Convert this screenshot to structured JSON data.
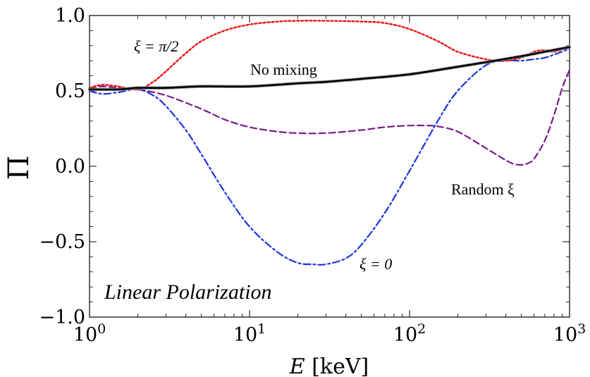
{
  "chart_data": {
    "type": "line",
    "xscale": "log",
    "xlim": [
      1,
      1000
    ],
    "ylim": [
      -1.0,
      1.0
    ],
    "x_ticks": [
      1,
      10,
      100,
      1000
    ],
    "y_ticks": [
      -1.0,
      -0.5,
      0.0,
      0.5,
      1.0
    ],
    "y_tick_labels": [
      "−1.0",
      "−0.5",
      "0.0",
      "0.5",
      "1.0"
    ],
    "xlabel_var": "E",
    "xlabel_unit": " [keV]",
    "ylabel": "Π",
    "inset_title": "Linear Polarization",
    "annotations": {
      "no_mixing": "No mixing",
      "xi_pi2": "ξ = π/2",
      "xi_0": "ξ = 0",
      "random_xi": "Random ξ"
    },
    "colors": {
      "no_mixing": "#000000",
      "xi_pi2": "#ee1111",
      "xi_0": "#1a33dd",
      "random_xi": "#7a1a8c"
    },
    "series": [
      {
        "key": "no_mixing",
        "name": "No mixing",
        "x": [
          1,
          1.5,
          2,
          3,
          5,
          10,
          20,
          30,
          50,
          100,
          200,
          300,
          500,
          700,
          1000
        ],
        "y": [
          0.51,
          0.51,
          0.52,
          0.52,
          0.53,
          0.53,
          0.55,
          0.56,
          0.58,
          0.61,
          0.66,
          0.69,
          0.73,
          0.76,
          0.79
        ]
      },
      {
        "key": "xi_pi2",
        "name": "ξ = π/2",
        "x": [
          1,
          1.2,
          1.5,
          2,
          2.5,
          3,
          4,
          5,
          7,
          10,
          15,
          20,
          30,
          50,
          70,
          100,
          150,
          200,
          300,
          400,
          500,
          600,
          700,
          800,
          1000
        ],
        "y": [
          0.52,
          0.54,
          0.53,
          0.51,
          0.56,
          0.63,
          0.75,
          0.83,
          0.9,
          0.94,
          0.96,
          0.965,
          0.965,
          0.96,
          0.95,
          0.91,
          0.83,
          0.76,
          0.71,
          0.7,
          0.72,
          0.76,
          0.77,
          0.76,
          0.79
        ]
      },
      {
        "key": "xi_0",
        "name": "ξ = 0",
        "x": [
          1,
          1.2,
          1.5,
          2,
          2.5,
          3,
          4,
          5,
          7,
          10,
          15,
          20,
          25,
          30,
          40,
          50,
          70,
          100,
          150,
          200,
          300,
          400,
          500,
          600,
          700,
          800,
          1000
        ],
        "y": [
          0.5,
          0.48,
          0.49,
          0.51,
          0.47,
          0.4,
          0.24,
          0.08,
          -0.17,
          -0.4,
          -0.57,
          -0.64,
          -0.65,
          -0.65,
          -0.61,
          -0.52,
          -0.31,
          -0.03,
          0.3,
          0.5,
          0.67,
          0.7,
          0.7,
          0.71,
          0.72,
          0.74,
          0.78
        ]
      },
      {
        "key": "random_xi",
        "name": "Random ξ",
        "x": [
          1,
          1.2,
          1.5,
          2,
          3,
          5,
          7,
          10,
          15,
          20,
          30,
          50,
          70,
          100,
          130,
          150,
          200,
          300,
          400,
          450,
          500,
          550,
          600,
          700,
          800,
          900,
          1000
        ],
        "y": [
          0.52,
          0.53,
          0.52,
          0.51,
          0.47,
          0.38,
          0.31,
          0.26,
          0.23,
          0.22,
          0.22,
          0.24,
          0.26,
          0.27,
          0.27,
          0.265,
          0.23,
          0.12,
          0.04,
          0.015,
          0.01,
          0.02,
          0.05,
          0.17,
          0.34,
          0.52,
          0.64
        ]
      }
    ]
  }
}
